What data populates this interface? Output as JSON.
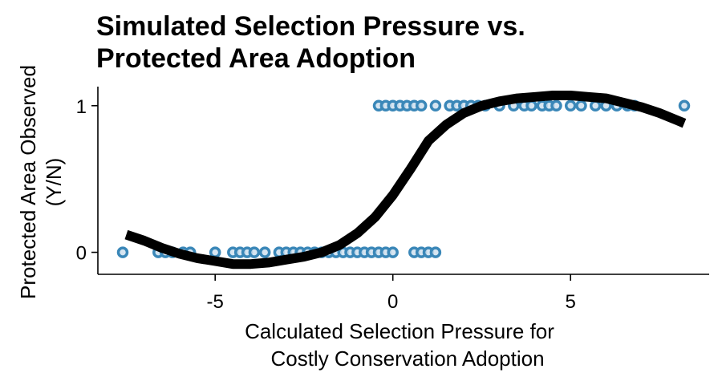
{
  "chart_data": {
    "type": "scatter",
    "title": [
      "Simulated Selection Pressure vs.",
      "Protected Area Adoption"
    ],
    "xlabel": [
      "Calculated Selection Pressure for",
      "Costly Conservation Adoption"
    ],
    "ylabel": [
      "Protected Area Observed",
      "(Y/N)"
    ],
    "xlim": [
      -8.3,
      8.9
    ],
    "ylim": [
      -0.15,
      1.13
    ],
    "x_ticks": [
      -5,
      0,
      5
    ],
    "x_tick_labels": [
      "-5",
      "0",
      "5"
    ],
    "y_ticks": [
      0,
      1
    ],
    "y_tick_labels": [
      "0",
      "1"
    ],
    "grid": false,
    "colors": {
      "points": "#3a87b8",
      "curve": "#000000"
    },
    "series": [
      {
        "type": "scatter",
        "points": [
          {
            "x": -7.6,
            "y": 0
          },
          {
            "x": -6.6,
            "y": 0
          },
          {
            "x": -6.4,
            "y": 0
          },
          {
            "x": -6.2,
            "y": 0
          },
          {
            "x": -5.9,
            "y": 0
          },
          {
            "x": -5.7,
            "y": 0
          },
          {
            "x": -5.0,
            "y": 0
          },
          {
            "x": -4.5,
            "y": 0
          },
          {
            "x": -4.3,
            "y": 0
          },
          {
            "x": -4.1,
            "y": 0
          },
          {
            "x": -3.9,
            "y": 0
          },
          {
            "x": -3.6,
            "y": 0
          },
          {
            "x": -3.2,
            "y": 0
          },
          {
            "x": -3.0,
            "y": 0
          },
          {
            "x": -2.8,
            "y": 0
          },
          {
            "x": -2.6,
            "y": 0
          },
          {
            "x": -2.4,
            "y": 0
          },
          {
            "x": -2.2,
            "y": 0
          },
          {
            "x": -2.0,
            "y": 0
          },
          {
            "x": -1.8,
            "y": 0
          },
          {
            "x": -1.6,
            "y": 0
          },
          {
            "x": -1.4,
            "y": 0
          },
          {
            "x": -1.2,
            "y": 0
          },
          {
            "x": -1.0,
            "y": 0
          },
          {
            "x": -0.8,
            "y": 0
          },
          {
            "x": -0.6,
            "y": 0
          },
          {
            "x": -0.4,
            "y": 0
          },
          {
            "x": -0.2,
            "y": 0
          },
          {
            "x": 0.0,
            "y": 0
          },
          {
            "x": 0.6,
            "y": 0
          },
          {
            "x": 0.8,
            "y": 0
          },
          {
            "x": 1.0,
            "y": 0
          },
          {
            "x": 1.2,
            "y": 0
          },
          {
            "x": -0.4,
            "y": 1
          },
          {
            "x": -0.2,
            "y": 1
          },
          {
            "x": 0.0,
            "y": 1
          },
          {
            "x": 0.2,
            "y": 1
          },
          {
            "x": 0.4,
            "y": 1
          },
          {
            "x": 0.6,
            "y": 1
          },
          {
            "x": 0.8,
            "y": 1
          },
          {
            "x": 1.2,
            "y": 1
          },
          {
            "x": 1.6,
            "y": 1
          },
          {
            "x": 1.8,
            "y": 1
          },
          {
            "x": 2.0,
            "y": 1
          },
          {
            "x": 2.2,
            "y": 1
          },
          {
            "x": 2.4,
            "y": 1
          },
          {
            "x": 2.6,
            "y": 1
          },
          {
            "x": 3.0,
            "y": 1
          },
          {
            "x": 3.4,
            "y": 1
          },
          {
            "x": 3.7,
            "y": 1
          },
          {
            "x": 3.9,
            "y": 1
          },
          {
            "x": 4.2,
            "y": 1
          },
          {
            "x": 4.4,
            "y": 1
          },
          {
            "x": 4.6,
            "y": 1
          },
          {
            "x": 5.0,
            "y": 1
          },
          {
            "x": 5.3,
            "y": 1
          },
          {
            "x": 5.7,
            "y": 1
          },
          {
            "x": 6.0,
            "y": 1
          },
          {
            "x": 6.3,
            "y": 1
          },
          {
            "x": 6.6,
            "y": 1
          },
          {
            "x": 6.8,
            "y": 1
          },
          {
            "x": 8.2,
            "y": 1
          }
        ]
      },
      {
        "type": "line",
        "points": [
          {
            "x": -7.5,
            "y": 0.12
          },
          {
            "x": -7.0,
            "y": 0.08
          },
          {
            "x": -6.5,
            "y": 0.03
          },
          {
            "x": -6.0,
            "y": -0.01
          },
          {
            "x": -5.5,
            "y": -0.04
          },
          {
            "x": -5.0,
            "y": -0.06
          },
          {
            "x": -4.5,
            "y": -0.08
          },
          {
            "x": -4.0,
            "y": -0.08
          },
          {
            "x": -3.5,
            "y": -0.07
          },
          {
            "x": -3.0,
            "y": -0.05
          },
          {
            "x": -2.5,
            "y": -0.03
          },
          {
            "x": -2.0,
            "y": 0.0
          },
          {
            "x": -1.5,
            "y": 0.05
          },
          {
            "x": -1.0,
            "y": 0.13
          },
          {
            "x": -0.5,
            "y": 0.24
          },
          {
            "x": 0.0,
            "y": 0.39
          },
          {
            "x": 0.5,
            "y": 0.57
          },
          {
            "x": 1.0,
            "y": 0.76
          },
          {
            "x": 1.5,
            "y": 0.87
          },
          {
            "x": 2.0,
            "y": 0.95
          },
          {
            "x": 2.5,
            "y": 1.0
          },
          {
            "x": 3.0,
            "y": 1.03
          },
          {
            "x": 3.5,
            "y": 1.05
          },
          {
            "x": 4.0,
            "y": 1.06
          },
          {
            "x": 4.5,
            "y": 1.07
          },
          {
            "x": 5.0,
            "y": 1.07
          },
          {
            "x": 5.5,
            "y": 1.06
          },
          {
            "x": 6.0,
            "y": 1.05
          },
          {
            "x": 6.5,
            "y": 1.02
          },
          {
            "x": 7.0,
            "y": 0.99
          },
          {
            "x": 7.5,
            "y": 0.95
          },
          {
            "x": 8.0,
            "y": 0.9
          },
          {
            "x": 8.2,
            "y": 0.88
          }
        ]
      }
    ]
  }
}
